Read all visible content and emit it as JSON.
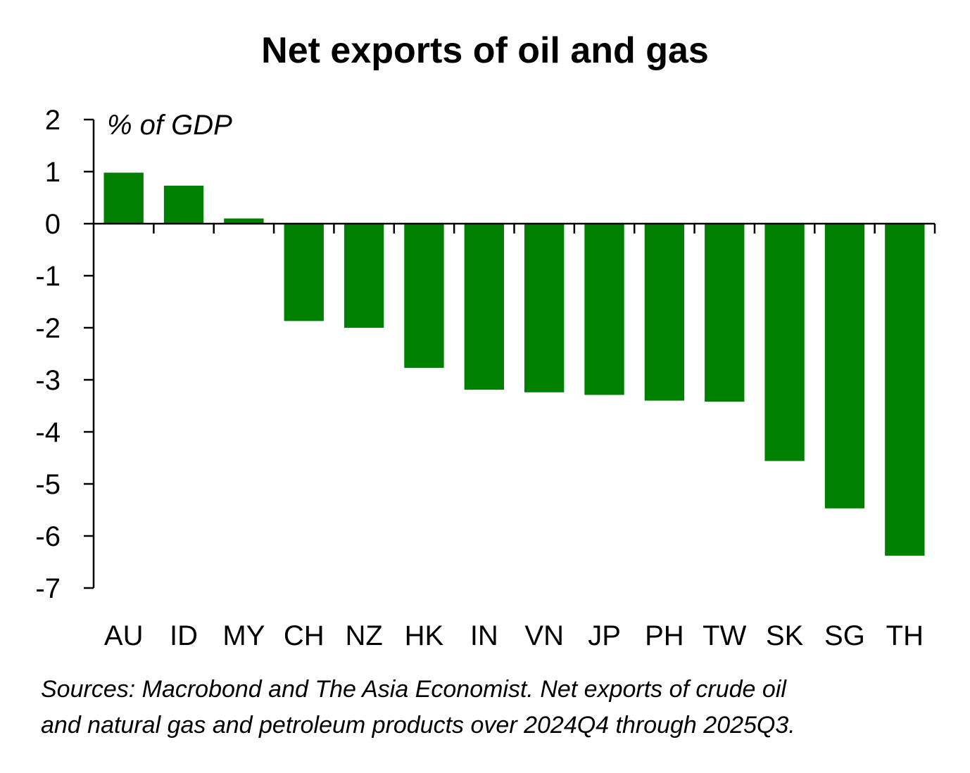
{
  "chart_data": {
    "type": "bar",
    "title": "Net exports of oil and gas",
    "ylabel": "% of GDP",
    "xlabel": "",
    "categories": [
      "AU",
      "ID",
      "MY",
      "CH",
      "NZ",
      "HK",
      "IN",
      "VN",
      "JP",
      "PH",
      "TW",
      "SK",
      "SG",
      "TH"
    ],
    "values": [
      0.98,
      0.73,
      0.1,
      -1.87,
      -2.0,
      -2.77,
      -3.19,
      -3.24,
      -3.29,
      -3.4,
      -3.42,
      -4.56,
      -5.47,
      -6.38
    ],
    "ylim": [
      -7,
      2
    ],
    "yticks": [
      "2",
      "1",
      "0",
      "-1",
      "-2",
      "-3",
      "-4",
      "-5",
      "-6",
      "-7"
    ],
    "bar_color": "#008000",
    "grid": false,
    "legend": "none"
  },
  "note": {
    "line1": "Sources: Macrobond and The Asia Economist. Net exports of crude oil",
    "line2": "and natural gas and petroleum products over  2024Q4 through 2025Q3."
  }
}
